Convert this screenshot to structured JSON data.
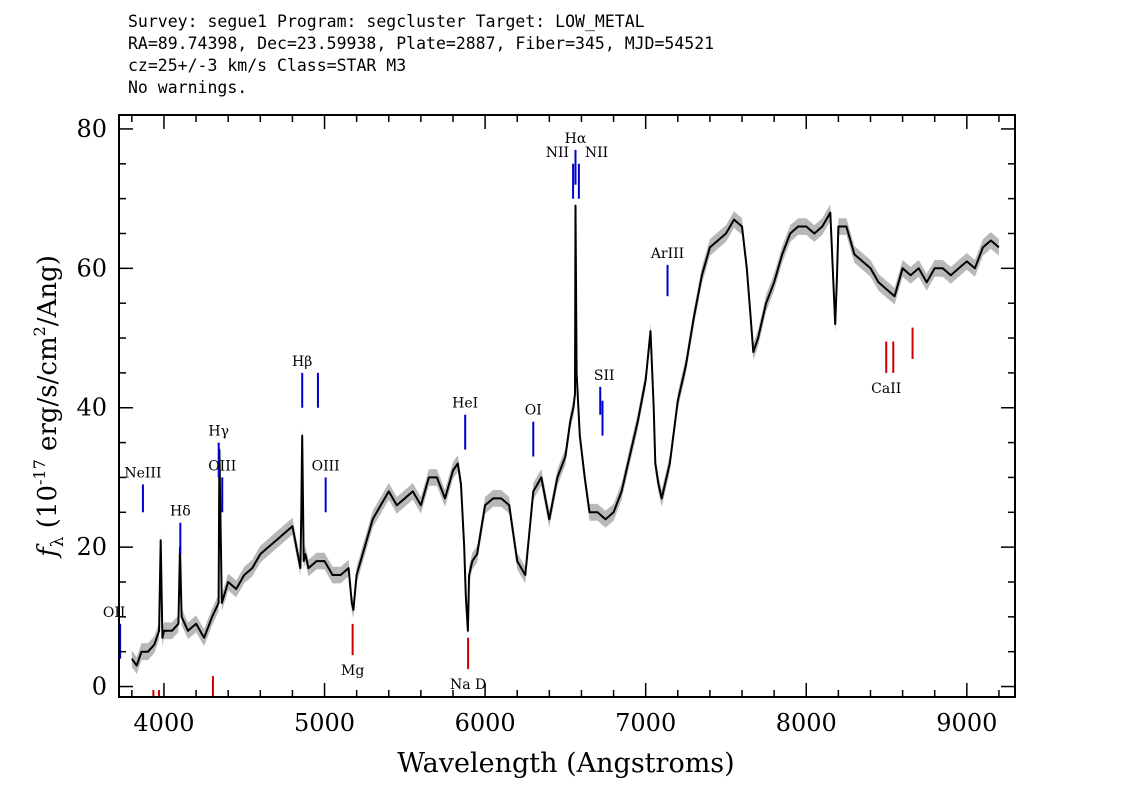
{
  "header": {
    "line1": "Survey: segue1 Program: segcluster Target: LOW_METAL",
    "line2": "RA=89.74398, Dec=23.59938, Plate=2887, Fiber=345, MJD=54521",
    "line3": "cz=25+/-3 km/s Class=STAR M3",
    "line4": "No warnings."
  },
  "colors": {
    "spectrum": "#000000",
    "error_band": "#b8b8b8",
    "emission_line": "#0000cc",
    "absorption_line": "#cc0000"
  },
  "chart_data": {
    "type": "line",
    "xlabel": "Wavelength (Angstroms)",
    "ylabel": "f_λ (10^-17 erg/s/cm^2/Ang)",
    "xlim": [
      3720,
      9300
    ],
    "ylim": [
      -1.5,
      82
    ],
    "xticks": [
      4000,
      5000,
      6000,
      7000,
      8000,
      9000
    ],
    "yticks": [
      0,
      20,
      40,
      60,
      80
    ],
    "tick_labels_x": [
      "4000",
      "5000",
      "6000",
      "7000",
      "8000",
      "9000"
    ],
    "tick_labels_y": [
      "0",
      "20",
      "40",
      "60",
      "80"
    ],
    "series": [
      {
        "x": [
          3800,
          3830,
          3860,
          3900,
          3940,
          3970,
          3980,
          3990,
          4000,
          4050,
          4090,
          4100,
          4110,
          4150,
          4200,
          4250,
          4300,
          4340,
          4345,
          4360,
          4400,
          4450,
          4500,
          4550,
          4600,
          4650,
          4700,
          4750,
          4800,
          4850,
          4855,
          4861,
          4870,
          4880,
          4900,
          4950,
          5000,
          5050,
          5100,
          5150,
          5170,
          5180,
          5200,
          5250,
          5300,
          5350,
          5400,
          5450,
          5500,
          5550,
          5600,
          5650,
          5700,
          5750,
          5800,
          5830,
          5850,
          5870,
          5880,
          5893,
          5900,
          5920,
          5950,
          6000,
          6050,
          6100,
          6150,
          6200,
          6250,
          6300,
          6350,
          6400,
          6450,
          6500,
          6530,
          6550,
          6560,
          6563,
          6570,
          6590,
          6620,
          6650,
          6700,
          6750,
          6800,
          6850,
          6900,
          6950,
          7000,
          7030,
          7050,
          7060,
          7080,
          7100,
          7150,
          7200,
          7250,
          7300,
          7350,
          7400,
          7450,
          7500,
          7550,
          7600,
          7630,
          7650,
          7670,
          7700,
          7750,
          7800,
          7850,
          7900,
          7950,
          8000,
          8050,
          8100,
          8150,
          8180,
          8190,
          8200,
          8250,
          8300,
          8350,
          8400,
          8450,
          8500,
          8550,
          8600,
          8650,
          8700,
          8750,
          8800,
          8850,
          8900,
          8950,
          9000,
          9050,
          9100,
          9150,
          9200
        ],
        "y": [
          4,
          3,
          5,
          5,
          6,
          8,
          21,
          7,
          8,
          8,
          9,
          20,
          10,
          8,
          9,
          7,
          10,
          12,
          34,
          12,
          15,
          14,
          16,
          17,
          19,
          20,
          21,
          22,
          23,
          17,
          25,
          36,
          18,
          19,
          17,
          18,
          18,
          16,
          16,
          17,
          12,
          11,
          16,
          20,
          24,
          26,
          28,
          26,
          27,
          28,
          26,
          30,
          30,
          27,
          31,
          32,
          29,
          20,
          13,
          8,
          16,
          18,
          19,
          26,
          27,
          27,
          26,
          18,
          16,
          28,
          30,
          24,
          30,
          33,
          38,
          40,
          42,
          69,
          45,
          36,
          30,
          25,
          25,
          24,
          25,
          28,
          33,
          38,
          44,
          51,
          40,
          32,
          29,
          27,
          32,
          41,
          46,
          53,
          59,
          63,
          64,
          65,
          67,
          66,
          60,
          54,
          48,
          50,
          55,
          58,
          62,
          65,
          66,
          66,
          65,
          66,
          68,
          52,
          58,
          66,
          66,
          62,
          61,
          60,
          58,
          57,
          56,
          60,
          59,
          60,
          58,
          60,
          60,
          59,
          60,
          61,
          60,
          63,
          64,
          63
        ],
        "error": 1.2
      }
    ],
    "line_markers": [
      {
        "label": "OII",
        "wave": 3727,
        "type": "emission",
        "y1": 4,
        "y2": 9
      },
      {
        "label": "NeIII",
        "wave": 3869,
        "type": "emission",
        "y1": 25,
        "y2": 29
      },
      {
        "label": "Hδ",
        "wave": 4102,
        "type": "emission",
        "y1": 19,
        "y2": 23.5
      },
      {
        "label": "Hγ",
        "wave": 4341,
        "type": "emission",
        "y1": 30,
        "y2": 35
      },
      {
        "label": "OIII",
        "wave": 4363,
        "type": "emission",
        "y1": 25,
        "y2": 30
      },
      {
        "label": "Hβ",
        "wave": 4861,
        "type": "emission",
        "y1": 40,
        "y2": 45
      },
      {
        "label": "",
        "wave": 4959,
        "type": "emission",
        "y1": 40,
        "y2": 45
      },
      {
        "label": "OIII",
        "wave": 5007,
        "type": "emission",
        "y1": 25,
        "y2": 30
      },
      {
        "label": "HeI",
        "wave": 5876,
        "type": "emission",
        "y1": 34,
        "y2": 39
      },
      {
        "label": "OI",
        "wave": 6300,
        "type": "emission",
        "y1": 33,
        "y2": 38
      },
      {
        "label": "NII",
        "wave": 6548,
        "type": "emission",
        "y1": 70,
        "y2": 75
      },
      {
        "label": "Hα",
        "wave": 6563,
        "type": "emission",
        "y1": 72,
        "y2": 77
      },
      {
        "label": "NII",
        "wave": 6584,
        "type": "emission",
        "y1": 70,
        "y2": 75
      },
      {
        "label": "SII",
        "wave": 6717,
        "type": "emission",
        "y1": 39,
        "y2": 43
      },
      {
        "label": "",
        "wave": 6731,
        "type": "emission",
        "y1": 36,
        "y2": 41
      },
      {
        "label": "ArIII",
        "wave": 7136,
        "type": "emission",
        "y1": 56,
        "y2": 60.5
      },
      {
        "label": "",
        "wave": 3934,
        "type": "absorption",
        "y1": -1.5,
        "y2": -0.5
      },
      {
        "label": "",
        "wave": 3969,
        "type": "absorption",
        "y1": -1.5,
        "y2": -0.5
      },
      {
        "label": "",
        "wave": 4305,
        "type": "absorption",
        "y1": -1.5,
        "y2": 1.5
      },
      {
        "label": "Mg",
        "wave": 5175,
        "type": "absorption",
        "y1": 4.5,
        "y2": 9
      },
      {
        "label": "Na D",
        "wave": 5894,
        "type": "absorption",
        "y1": 2.5,
        "y2": 7
      },
      {
        "label": "CaII",
        "wave": 8498,
        "type": "absorption",
        "y1": 45,
        "y2": 49.5
      },
      {
        "label": "",
        "wave": 8542,
        "type": "absorption",
        "y1": 45,
        "y2": 49.5
      },
      {
        "label": "",
        "wave": 8662,
        "type": "absorption",
        "y1": 47,
        "y2": 51.5
      }
    ]
  }
}
